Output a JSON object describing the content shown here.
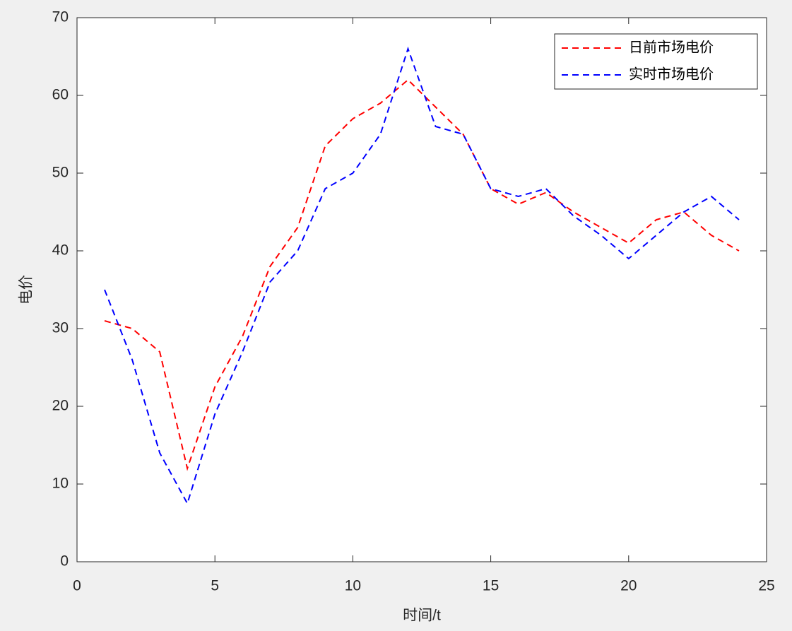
{
  "chart_data": {
    "type": "line",
    "x_label": "时间/t",
    "y_label": "电价",
    "x": [
      1,
      2,
      3,
      4,
      5,
      6,
      7,
      8,
      9,
      10,
      11,
      12,
      13,
      14,
      15,
      16,
      17,
      18,
      19,
      20,
      21,
      22,
      23,
      24
    ],
    "series": [
      {
        "name": "日前市场电价",
        "color": "#ff0000",
        "values": [
          31,
          30,
          27,
          12,
          22.5,
          29,
          38,
          43,
          53.5,
          57,
          59,
          62,
          58.5,
          55,
          48,
          46,
          47.5,
          45,
          43,
          41,
          44,
          45,
          42,
          40
        ]
      },
      {
        "name": "实时市场电价",
        "color": "#0000ff",
        "values": [
          35,
          26,
          14,
          7.5,
          19,
          27,
          36,
          40,
          48,
          50,
          55,
          66,
          56,
          55,
          48,
          47,
          48,
          44.5,
          42,
          39,
          42,
          45,
          47,
          44
        ]
      }
    ],
    "xlim": [
      0,
      25
    ],
    "ylim": [
      0,
      70
    ],
    "xticks": [
      0,
      5,
      10,
      15,
      20,
      25
    ],
    "yticks": [
      0,
      10,
      20,
      30,
      40,
      50,
      60,
      70
    ],
    "legend": "upper right",
    "line_style": "dashed"
  }
}
